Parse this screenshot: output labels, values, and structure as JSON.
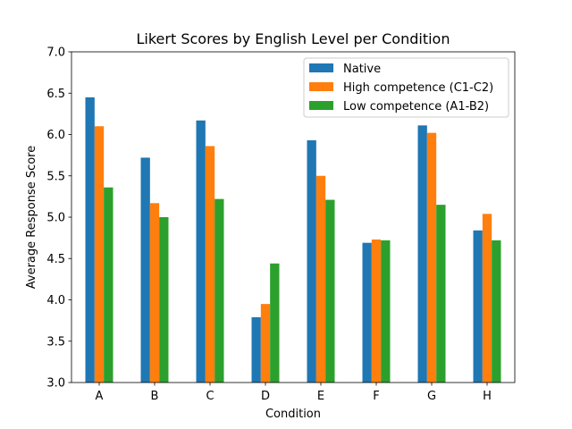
{
  "chart_data": {
    "type": "bar",
    "title": "Likert Scores by English Level per Condition",
    "xlabel": "Condition",
    "ylabel": "Average Response Score",
    "ylim": [
      3.0,
      7.0
    ],
    "yticks": [
      "3.0",
      "3.5",
      "4.0",
      "4.5",
      "5.0",
      "5.5",
      "6.0",
      "6.5",
      "7.0"
    ],
    "categories": [
      "A",
      "B",
      "C",
      "D",
      "E",
      "F",
      "G",
      "H"
    ],
    "legend_position": "top-right",
    "grid": false,
    "series": [
      {
        "name": "Native",
        "color": "#1f77b4",
        "values": [
          6.45,
          5.72,
          6.17,
          3.79,
          5.93,
          4.69,
          6.11,
          4.84
        ]
      },
      {
        "name": "High competence (C1-C2)",
        "color": "#ff7f0e",
        "values": [
          6.1,
          5.17,
          5.86,
          3.95,
          5.5,
          4.73,
          6.02,
          5.04
        ]
      },
      {
        "name": "Low competence (A1-B2)",
        "color": "#2ca02c",
        "values": [
          5.36,
          5.0,
          5.22,
          4.44,
          5.21,
          4.72,
          5.15,
          4.72
        ]
      }
    ]
  }
}
